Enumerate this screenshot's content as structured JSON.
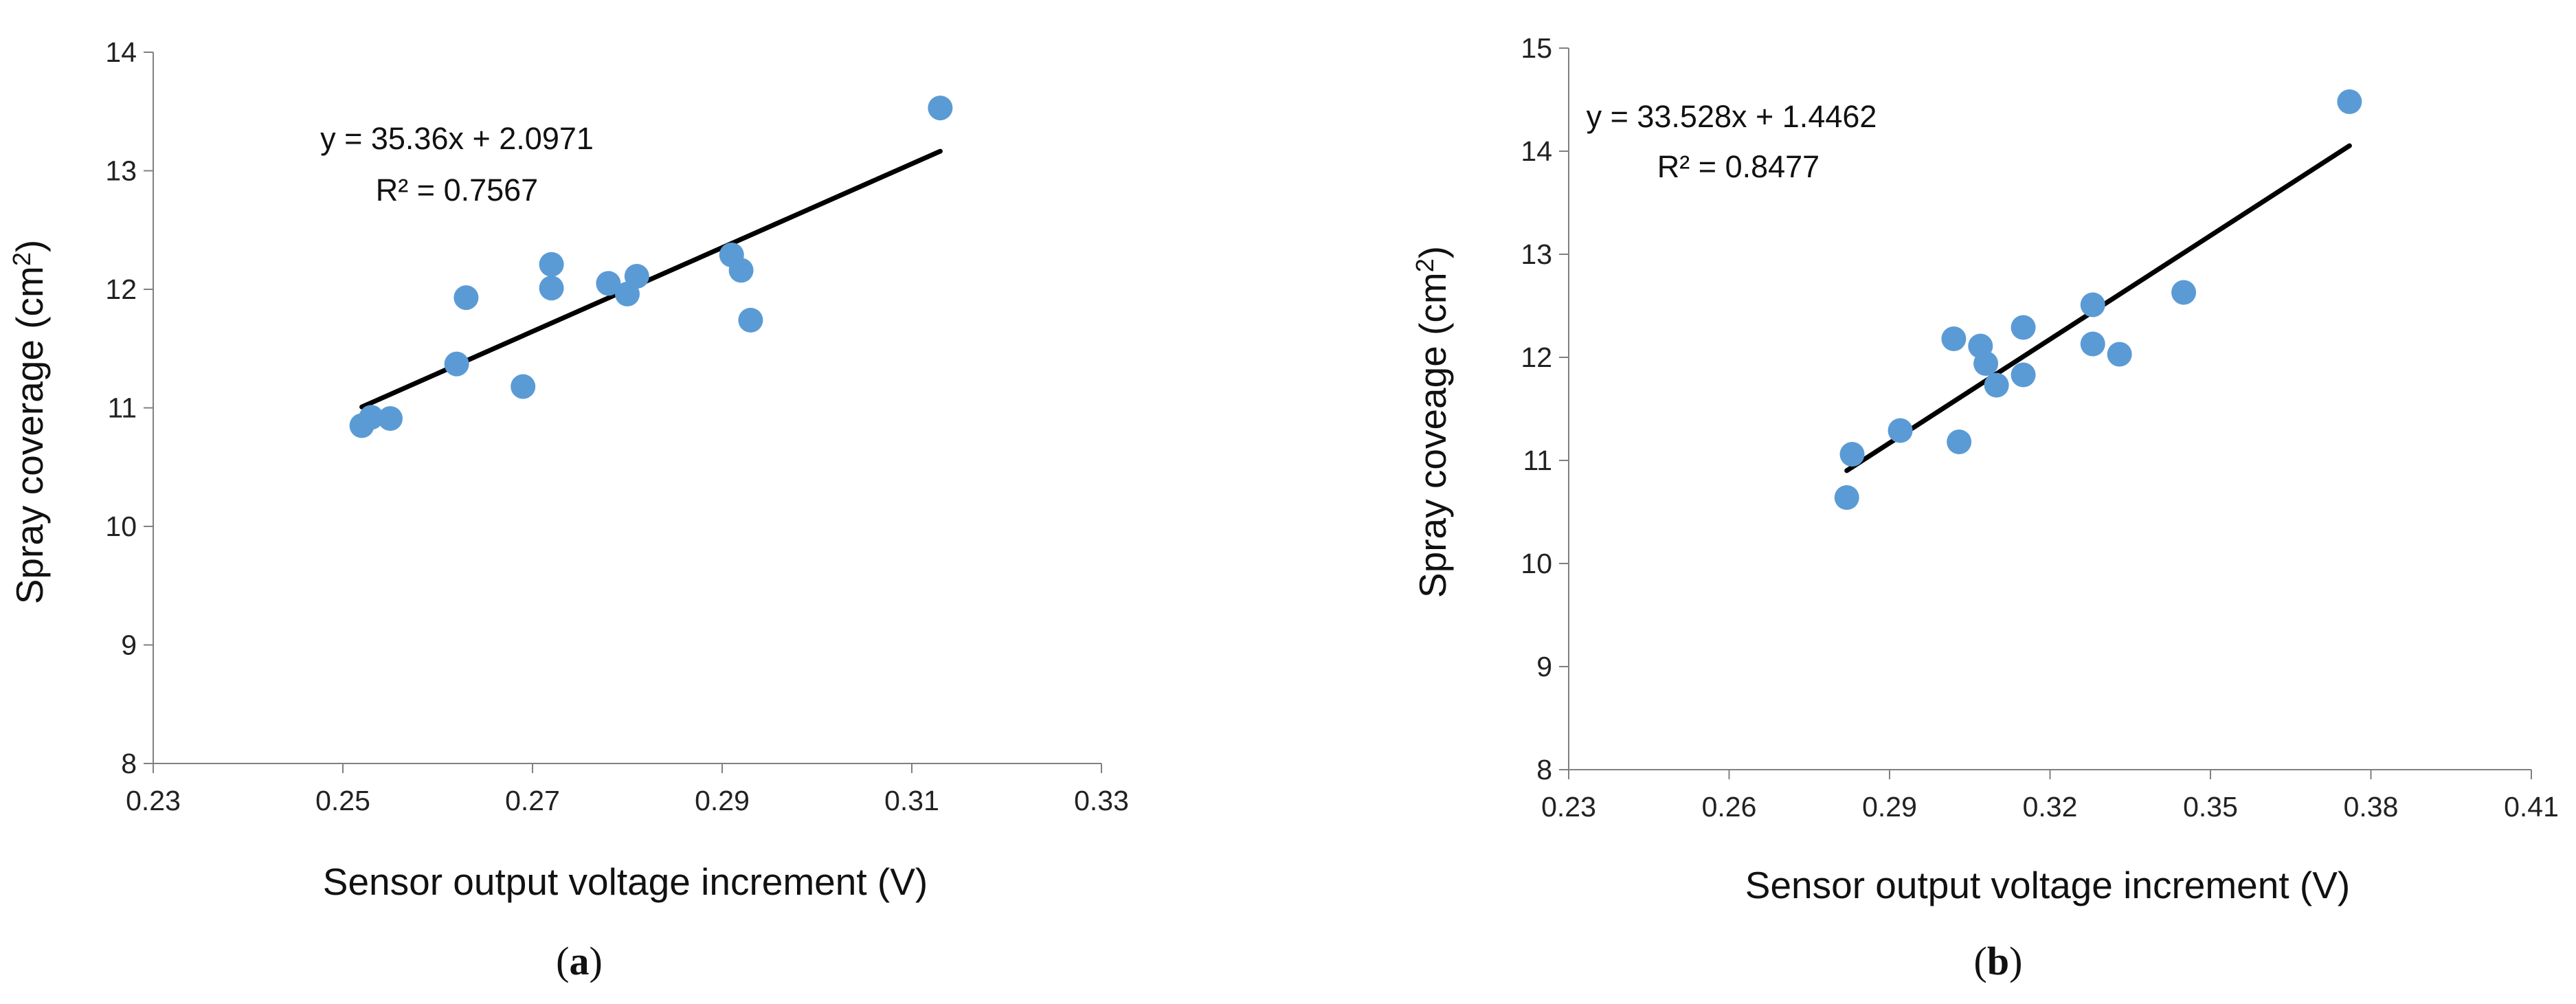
{
  "chart_data": [
    {
      "type": "scatter",
      "caption_letter": "a",
      "xlabel": "Sensor output voltage increment (V)",
      "ylabel_main": "Spray coverage (cm",
      "ylabel_sup": "2",
      "ylabel_end": ")",
      "xlim": [
        0.23,
        0.33
      ],
      "ylim": [
        8,
        14
      ],
      "xticks": [
        "0.23",
        "0.25",
        "0.27",
        "0.29",
        "0.31",
        "0.33"
      ],
      "yticks": [
        "8",
        "9",
        "10",
        "11",
        "12",
        "13",
        "14"
      ],
      "trendline": {
        "slope": 35.36,
        "intercept": 2.0971,
        "x_start": 0.252,
        "x_end": 0.313
      },
      "equation": "y = 35.36x + 2.0971",
      "r2_label": "R² = 0.7567",
      "point_color": "#5B9BD5",
      "line_color": "#000000",
      "points": [
        {
          "x": 0.252,
          "y": 10.85
        },
        {
          "x": 0.253,
          "y": 10.92
        },
        {
          "x": 0.255,
          "y": 10.91
        },
        {
          "x": 0.262,
          "y": 11.37
        },
        {
          "x": 0.263,
          "y": 11.93
        },
        {
          "x": 0.269,
          "y": 11.18
        },
        {
          "x": 0.272,
          "y": 12.21
        },
        {
          "x": 0.272,
          "y": 12.01
        },
        {
          "x": 0.278,
          "y": 12.05
        },
        {
          "x": 0.28,
          "y": 11.96
        },
        {
          "x": 0.281,
          "y": 12.11
        },
        {
          "x": 0.291,
          "y": 12.29
        },
        {
          "x": 0.292,
          "y": 12.16
        },
        {
          "x": 0.293,
          "y": 11.74
        },
        {
          "x": 0.313,
          "y": 13.53
        }
      ]
    },
    {
      "type": "scatter",
      "caption_letter": "b",
      "xlabel": "Sensor output voltage increment (V)",
      "ylabel_main": "Spray coveage (cm",
      "ylabel_sup": "2",
      "ylabel_end": ")",
      "xlim": [
        0.23,
        0.41
      ],
      "ylim": [
        8,
        15
      ],
      "xticks": [
        "0.23",
        "0.26",
        "0.29",
        "0.32",
        "0.35",
        "0.38",
        "0.41"
      ],
      "yticks": [
        "8",
        "9",
        "10",
        "11",
        "12",
        "13",
        "14",
        "15"
      ],
      "trendline": {
        "slope": 33.528,
        "intercept": 1.4462,
        "x_start": 0.282,
        "x_end": 0.376
      },
      "equation": "y = 33.528x + 1.4462",
      "r2_label": "R² = 0.8477",
      "point_color": "#5B9BD5",
      "line_color": "#000000",
      "points": [
        {
          "x": 0.282,
          "y": 10.64
        },
        {
          "x": 0.283,
          "y": 11.06
        },
        {
          "x": 0.292,
          "y": 11.29
        },
        {
          "x": 0.302,
          "y": 12.18
        },
        {
          "x": 0.303,
          "y": 11.18
        },
        {
          "x": 0.307,
          "y": 12.11
        },
        {
          "x": 0.308,
          "y": 11.94
        },
        {
          "x": 0.31,
          "y": 11.73
        },
        {
          "x": 0.315,
          "y": 12.29
        },
        {
          "x": 0.315,
          "y": 11.83
        },
        {
          "x": 0.328,
          "y": 12.51
        },
        {
          "x": 0.328,
          "y": 12.13
        },
        {
          "x": 0.333,
          "y": 12.03
        },
        {
          "x": 0.345,
          "y": 12.63
        },
        {
          "x": 0.376,
          "y": 14.48
        }
      ]
    }
  ]
}
